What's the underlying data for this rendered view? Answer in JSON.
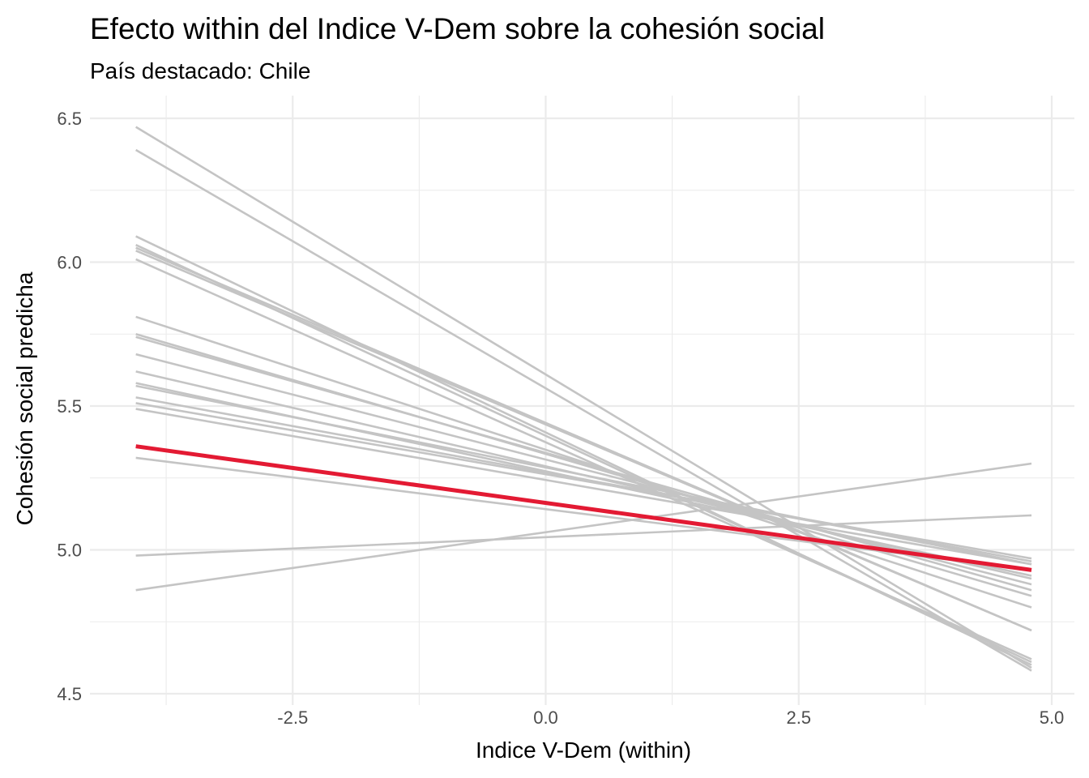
{
  "chart_data": {
    "type": "line",
    "title": "Efecto within del Indice V-Dem sobre la cohesión social",
    "subtitle": "País destacado: Chile",
    "xlabel": "Indice V-Dem (within)",
    "ylabel": "Cohesión social predicha",
    "xlim": [
      -4.5,
      5.0
    ],
    "ylim": [
      4.5,
      6.5
    ],
    "x_ticks": [
      -2.5,
      0.0,
      2.5,
      5.0
    ],
    "x_tick_labels": [
      "-2.5",
      "0.0",
      "2.5",
      "5.0"
    ],
    "y_ticks": [
      4.5,
      5.0,
      5.5,
      6.0,
      6.5
    ],
    "y_tick_labels": [
      "4.5",
      "5.0",
      "5.5",
      "6.0",
      "6.5"
    ],
    "grid": true,
    "legend": "none",
    "colors": {
      "background_lines": "#c4c4c4",
      "highlight": "#e31a33"
    },
    "series": [
      {
        "x": [
          -4.05,
          4.8
        ],
        "y": [
          6.47,
          4.59
        ]
      },
      {
        "x": [
          -4.05,
          4.8
        ],
        "y": [
          6.39,
          4.58
        ]
      },
      {
        "x": [
          -4.05,
          4.8
        ],
        "y": [
          6.09,
          4.6
        ]
      },
      {
        "x": [
          -4.05,
          4.8
        ],
        "y": [
          6.06,
          4.61
        ]
      },
      {
        "x": [
          -4.05,
          4.8
        ],
        "y": [
          6.05,
          4.72
        ]
      },
      {
        "x": [
          -4.05,
          4.8
        ],
        "y": [
          6.04,
          4.72
        ]
      },
      {
        "x": [
          -4.05,
          4.8
        ],
        "y": [
          6.01,
          4.62
        ]
      },
      {
        "x": [
          -4.05,
          4.8
        ],
        "y": [
          5.81,
          4.8
        ]
      },
      {
        "x": [
          -4.05,
          4.8
        ],
        "y": [
          5.75,
          4.84
        ]
      },
      {
        "x": [
          -4.05,
          4.8
        ],
        "y": [
          5.74,
          4.86
        ]
      },
      {
        "x": [
          -4.05,
          4.8
        ],
        "y": [
          5.68,
          4.88
        ]
      },
      {
        "x": [
          -4.05,
          4.8
        ],
        "y": [
          5.62,
          4.9
        ]
      },
      {
        "x": [
          -4.05,
          4.8
        ],
        "y": [
          5.58,
          4.91
        ]
      },
      {
        "x": [
          -4.05,
          4.8
        ],
        "y": [
          5.57,
          4.95
        ]
      },
      {
        "x": [
          -4.05,
          4.8
        ],
        "y": [
          5.53,
          4.96
        ]
      },
      {
        "x": [
          -4.05,
          4.8
        ],
        "y": [
          5.51,
          4.97
        ]
      },
      {
        "x": [
          -4.05,
          4.8
        ],
        "y": [
          5.49,
          4.95
        ]
      },
      {
        "x": [
          -4.05,
          4.8
        ],
        "y": [
          5.32,
          4.93
        ]
      },
      {
        "x": [
          -4.05,
          4.8
        ],
        "y": [
          4.98,
          5.12
        ]
      },
      {
        "x": [
          -4.05,
          4.8
        ],
        "y": [
          4.86,
          5.3
        ]
      },
      {
        "name": "Chile",
        "highlight": true,
        "x": [
          -4.05,
          4.8
        ],
        "y": [
          5.36,
          4.93
        ]
      }
    ]
  }
}
